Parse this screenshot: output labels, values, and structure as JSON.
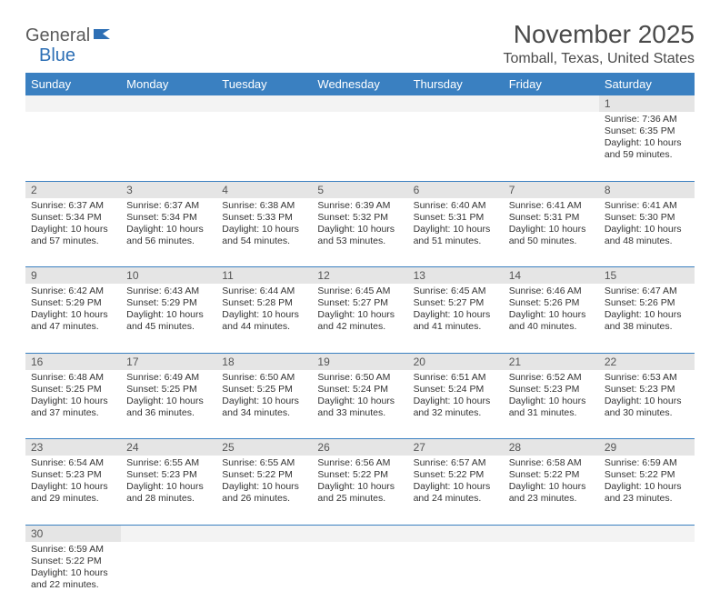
{
  "logo": {
    "part1": "General",
    "part2": "Blue"
  },
  "title": "November 2025",
  "location": "Tomball, Texas, United States",
  "colors": {
    "header_bg": "#3a80c1",
    "header_text": "#ffffff",
    "daynum_bg": "#e5e5e5",
    "blank_bg": "#f3f3f3",
    "border": "#3a80c1",
    "logo_gray": "#5a5a5a",
    "logo_blue": "#2d6fb5"
  },
  "weekdays": [
    "Sunday",
    "Monday",
    "Tuesday",
    "Wednesday",
    "Thursday",
    "Friday",
    "Saturday"
  ],
  "weeks": [
    [
      null,
      null,
      null,
      null,
      null,
      null,
      {
        "n": "1",
        "sr": "Sunrise: 7:36 AM",
        "ss": "Sunset: 6:35 PM",
        "dl": "Daylight: 10 hours and 59 minutes."
      }
    ],
    [
      {
        "n": "2",
        "sr": "Sunrise: 6:37 AM",
        "ss": "Sunset: 5:34 PM",
        "dl": "Daylight: 10 hours and 57 minutes."
      },
      {
        "n": "3",
        "sr": "Sunrise: 6:37 AM",
        "ss": "Sunset: 5:34 PM",
        "dl": "Daylight: 10 hours and 56 minutes."
      },
      {
        "n": "4",
        "sr": "Sunrise: 6:38 AM",
        "ss": "Sunset: 5:33 PM",
        "dl": "Daylight: 10 hours and 54 minutes."
      },
      {
        "n": "5",
        "sr": "Sunrise: 6:39 AM",
        "ss": "Sunset: 5:32 PM",
        "dl": "Daylight: 10 hours and 53 minutes."
      },
      {
        "n": "6",
        "sr": "Sunrise: 6:40 AM",
        "ss": "Sunset: 5:31 PM",
        "dl": "Daylight: 10 hours and 51 minutes."
      },
      {
        "n": "7",
        "sr": "Sunrise: 6:41 AM",
        "ss": "Sunset: 5:31 PM",
        "dl": "Daylight: 10 hours and 50 minutes."
      },
      {
        "n": "8",
        "sr": "Sunrise: 6:41 AM",
        "ss": "Sunset: 5:30 PM",
        "dl": "Daylight: 10 hours and 48 minutes."
      }
    ],
    [
      {
        "n": "9",
        "sr": "Sunrise: 6:42 AM",
        "ss": "Sunset: 5:29 PM",
        "dl": "Daylight: 10 hours and 47 minutes."
      },
      {
        "n": "10",
        "sr": "Sunrise: 6:43 AM",
        "ss": "Sunset: 5:29 PM",
        "dl": "Daylight: 10 hours and 45 minutes."
      },
      {
        "n": "11",
        "sr": "Sunrise: 6:44 AM",
        "ss": "Sunset: 5:28 PM",
        "dl": "Daylight: 10 hours and 44 minutes."
      },
      {
        "n": "12",
        "sr": "Sunrise: 6:45 AM",
        "ss": "Sunset: 5:27 PM",
        "dl": "Daylight: 10 hours and 42 minutes."
      },
      {
        "n": "13",
        "sr": "Sunrise: 6:45 AM",
        "ss": "Sunset: 5:27 PM",
        "dl": "Daylight: 10 hours and 41 minutes."
      },
      {
        "n": "14",
        "sr": "Sunrise: 6:46 AM",
        "ss": "Sunset: 5:26 PM",
        "dl": "Daylight: 10 hours and 40 minutes."
      },
      {
        "n": "15",
        "sr": "Sunrise: 6:47 AM",
        "ss": "Sunset: 5:26 PM",
        "dl": "Daylight: 10 hours and 38 minutes."
      }
    ],
    [
      {
        "n": "16",
        "sr": "Sunrise: 6:48 AM",
        "ss": "Sunset: 5:25 PM",
        "dl": "Daylight: 10 hours and 37 minutes."
      },
      {
        "n": "17",
        "sr": "Sunrise: 6:49 AM",
        "ss": "Sunset: 5:25 PM",
        "dl": "Daylight: 10 hours and 36 minutes."
      },
      {
        "n": "18",
        "sr": "Sunrise: 6:50 AM",
        "ss": "Sunset: 5:25 PM",
        "dl": "Daylight: 10 hours and 34 minutes."
      },
      {
        "n": "19",
        "sr": "Sunrise: 6:50 AM",
        "ss": "Sunset: 5:24 PM",
        "dl": "Daylight: 10 hours and 33 minutes."
      },
      {
        "n": "20",
        "sr": "Sunrise: 6:51 AM",
        "ss": "Sunset: 5:24 PM",
        "dl": "Daylight: 10 hours and 32 minutes."
      },
      {
        "n": "21",
        "sr": "Sunrise: 6:52 AM",
        "ss": "Sunset: 5:23 PM",
        "dl": "Daylight: 10 hours and 31 minutes."
      },
      {
        "n": "22",
        "sr": "Sunrise: 6:53 AM",
        "ss": "Sunset: 5:23 PM",
        "dl": "Daylight: 10 hours and 30 minutes."
      }
    ],
    [
      {
        "n": "23",
        "sr": "Sunrise: 6:54 AM",
        "ss": "Sunset: 5:23 PM",
        "dl": "Daylight: 10 hours and 29 minutes."
      },
      {
        "n": "24",
        "sr": "Sunrise: 6:55 AM",
        "ss": "Sunset: 5:23 PM",
        "dl": "Daylight: 10 hours and 28 minutes."
      },
      {
        "n": "25",
        "sr": "Sunrise: 6:55 AM",
        "ss": "Sunset: 5:22 PM",
        "dl": "Daylight: 10 hours and 26 minutes."
      },
      {
        "n": "26",
        "sr": "Sunrise: 6:56 AM",
        "ss": "Sunset: 5:22 PM",
        "dl": "Daylight: 10 hours and 25 minutes."
      },
      {
        "n": "27",
        "sr": "Sunrise: 6:57 AM",
        "ss": "Sunset: 5:22 PM",
        "dl": "Daylight: 10 hours and 24 minutes."
      },
      {
        "n": "28",
        "sr": "Sunrise: 6:58 AM",
        "ss": "Sunset: 5:22 PM",
        "dl": "Daylight: 10 hours and 23 minutes."
      },
      {
        "n": "29",
        "sr": "Sunrise: 6:59 AM",
        "ss": "Sunset: 5:22 PM",
        "dl": "Daylight: 10 hours and 23 minutes."
      }
    ],
    [
      {
        "n": "30",
        "sr": "Sunrise: 6:59 AM",
        "ss": "Sunset: 5:22 PM",
        "dl": "Daylight: 10 hours and 22 minutes."
      },
      null,
      null,
      null,
      null,
      null,
      null
    ]
  ]
}
